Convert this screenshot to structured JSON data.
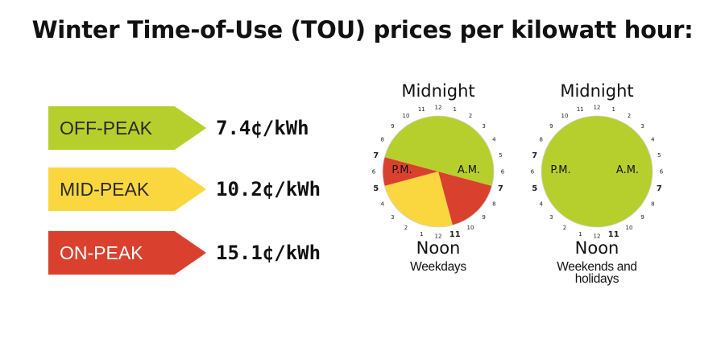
{
  "title": "Winter Time-of-Use (TOU) prices per kilowatt hour:",
  "tiers": [
    {
      "label": "OFF-PEAK",
      "price": "7.4¢/kWh",
      "color": "#b7cf2c",
      "text_color": "#2a2a2a"
    },
    {
      "label": "MID-PEAK",
      "price": "10.2¢/kWh",
      "color": "#fbd73f",
      "text_color": "#2a2a2a"
    },
    {
      "label": "ON-PEAK",
      "price": "15.1¢/kWh",
      "color": "#d9412e",
      "text_color": "#ffffff"
    }
  ],
  "clocks": [
    {
      "top_label": "Midnight",
      "bottom_label": "Noon",
      "pm_label": "P.M.",
      "am_label": "A.M.",
      "caption_lines": [
        "Weekdays"
      ],
      "periods": [
        {
          "tier": "ON-PEAK",
          "start": "7",
          "end": "11"
        },
        {
          "tier": "MID-PEAK",
          "start": "11",
          "end": "17"
        },
        {
          "tier": "ON-PEAK",
          "start": "17",
          "end": "19"
        },
        {
          "tier": "OFF-PEAK",
          "start": "19",
          "end": "7"
        }
      ]
    },
    {
      "top_label": "Midnight",
      "bottom_label": "Noon",
      "pm_label": "P.M.",
      "am_label": "A.M.",
      "caption_lines": [
        "Weekends and",
        "holidays"
      ],
      "periods": [
        {
          "tier": "OFF-PEAK",
          "start": "0",
          "end": "24"
        }
      ]
    }
  ],
  "dial_labels": {
    "right": [
      "12",
      "1",
      "2",
      "3",
      "4",
      "5",
      "6",
      "7",
      "8",
      "9",
      "10",
      "11"
    ],
    "left": [
      "12",
      "1",
      "2",
      "3",
      "4",
      "5",
      "6",
      "7",
      "8",
      "9",
      "10",
      "11"
    ]
  }
}
